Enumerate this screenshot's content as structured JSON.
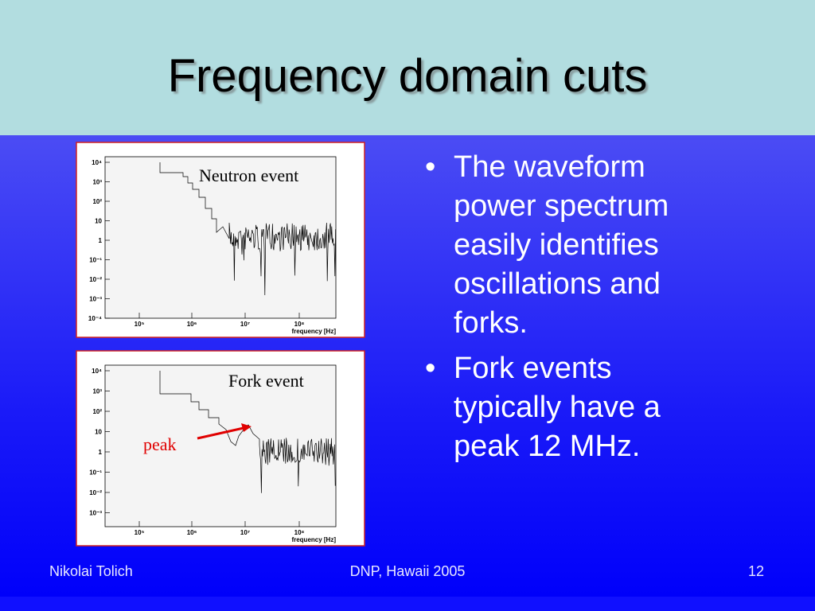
{
  "title": "Frequency domain cuts",
  "plots": [
    {
      "label": "Neutron event",
      "yticks": [
        "10⁴",
        "10³",
        "10²",
        "10",
        "1",
        "10⁻¹",
        "10⁻²",
        "10⁻³",
        "10⁻⁴"
      ],
      "xticks": [
        "10⁵",
        "10⁶",
        "10⁷",
        "10⁸"
      ],
      "xlabel": "frequency [Hz]"
    },
    {
      "label": "Fork event",
      "annotation": "peak",
      "yticks": [
        "10⁴",
        "10³",
        "10²",
        "10",
        "1",
        "10⁻¹",
        "10⁻²",
        "10⁻³"
      ],
      "xticks": [
        "10⁵",
        "10⁶",
        "10⁷",
        "10⁸"
      ],
      "xlabel": "frequency [Hz]"
    }
  ],
  "bullets": [
    "The waveform power spectrum easily identifies oscillations and forks.",
    "Fork events typically have a peak 12 MHz."
  ],
  "footer": {
    "left": "Nikolai Tolich",
    "center": "DNP, Hawaii 2005",
    "right": "12"
  }
}
